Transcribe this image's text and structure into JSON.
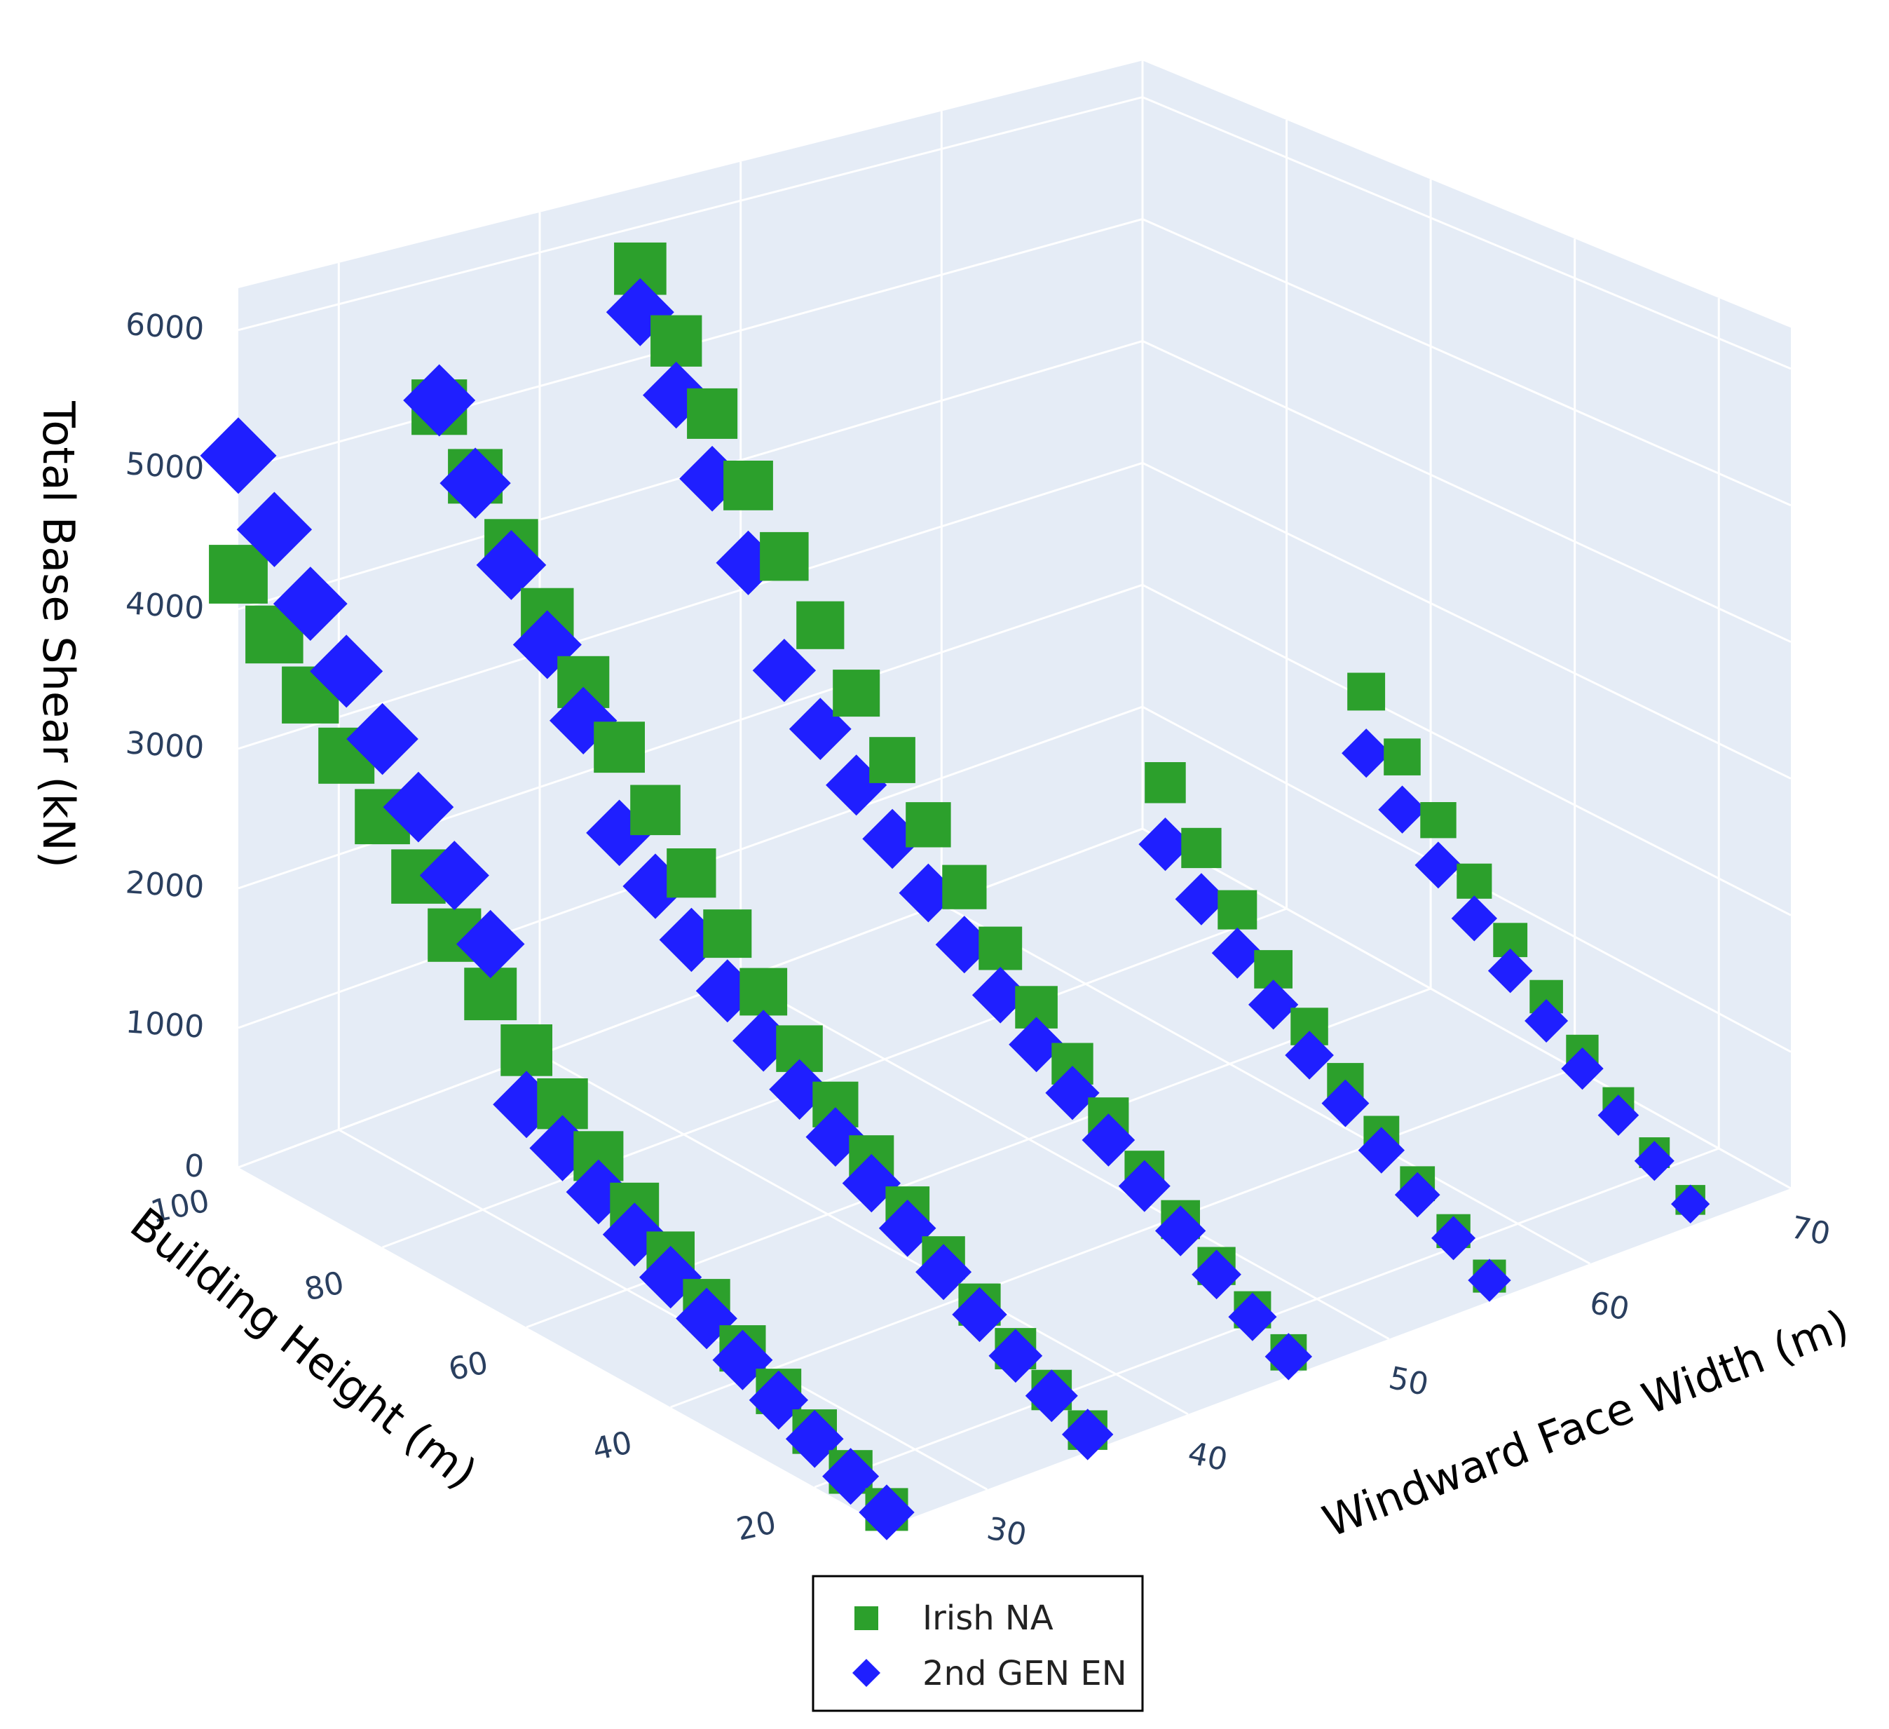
{
  "chart_data": {
    "type": "scatter3d",
    "x_axis": {
      "title": "Windward Face Width (m)",
      "range": [
        25,
        70
      ],
      "ticks": [
        30,
        40,
        50,
        60,
        70
      ]
    },
    "y_axis": {
      "title": "Building Height (m)",
      "range": [
        10,
        100
      ],
      "ticks": [
        20,
        40,
        60,
        80,
        100
      ]
    },
    "z_axis": {
      "title": "Total Base Shear (kN)",
      "range": [
        0,
        6300
      ],
      "ticks": [
        0,
        1000,
        2000,
        3000,
        4000,
        5000,
        6000
      ]
    },
    "widths": [
      25,
      35,
      45,
      55,
      65
    ],
    "heights": [
      10,
      15,
      20,
      25,
      30,
      35,
      40,
      45,
      50,
      55,
      60,
      65,
      70,
      75,
      80,
      85,
      90,
      95,
      100
    ],
    "series": [
      {
        "name": "Irish NA",
        "marker": "square",
        "color": "#2ca02c",
        "z": {
          "25": [
            120,
            240,
            380,
            520,
            680,
            860,
            1050,
            1250,
            1470,
            1700,
            1940,
            2200,
            2480,
            2760,
            3050,
            3350,
            3650,
            3950,
            4250
          ],
          "35": [
            150,
            290,
            440,
            610,
            800,
            1010,
            1230,
            1470,
            1730,
            2000,
            2280,
            2580,
            2900,
            3220,
            3560,
            3920,
            4290,
            4670,
            5050
          ],
          "45": [
            170,
            330,
            500,
            690,
            900,
            1140,
            1390,
            1660,
            1950,
            2260,
            2580,
            2920,
            3280,
            3650,
            4030,
            4430,
            4840,
            5260,
            5680
          ],
          "55": [
            180,
            360,
            560,
            780,
            1020,
            1280,
            1560,
            1860,
            2180,
            2530
          ],
          "65": [
            190,
            390,
            610,
            850,
            1110,
            1390,
            1690,
            2010,
            2350,
            2710
          ]
        }
      },
      {
        "name": "2nd GEN EN",
        "marker": "diamond",
        "color": "#1f1fff",
        "z": {
          "25": [
            100,
            210,
            330,
            460,
            600,
            750,
            900,
            1060,
            1220,
            1390,
            1560,
            2550,
            2900,
            3250,
            3600,
            3950,
            4300,
            4700,
            5100
          ],
          "35": [
            120,
            250,
            390,
            540,
            700,
            870,
            1050,
            1240,
            1440,
            1650,
            1870,
            2100,
            2350,
            2600,
            3280,
            3700,
            4150,
            4620,
            5100
          ],
          "45": [
            140,
            280,
            440,
            610,
            790,
            980,
            1180,
            1390,
            1610,
            1840,
            2080,
            2340,
            2600,
            2880,
            3180,
            3850,
            4350,
            4850,
            5350
          ],
          "55": [
            150,
            310,
            480,
            660,
            860,
            1070,
            1300,
            1540,
            1800,
            2070
          ],
          "65": [
            160,
            330,
            520,
            720,
            930,
            1160,
            1410,
            1670,
            1950,
            2240
          ]
        }
      }
    ],
    "legend": {
      "position": "bottom-center",
      "entries": [
        "Irish NA",
        "2nd GEN EN"
      ]
    }
  }
}
